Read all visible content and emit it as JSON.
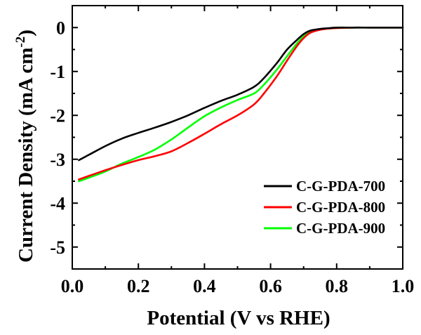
{
  "chart_data": {
    "type": "line",
    "xlabel": "Potential (V vs RHE)",
    "ylabel": "Current Density (mA cm",
    "ylabel_sup": "-2",
    "ylabel_close": ")",
    "xlim": [
      0.0,
      1.0
    ],
    "ylim": [
      -5.5,
      0.5
    ],
    "x_ticks": [
      0.0,
      0.2,
      0.4,
      0.6,
      0.8,
      1.0
    ],
    "x_tick_labels": [
      "0.0",
      "0.2",
      "0.4",
      "0.6",
      "0.8",
      "1.0"
    ],
    "y_ticks": [
      0,
      -1,
      -2,
      -3,
      -4,
      -5
    ],
    "y_tick_labels": [
      "0",
      "-1",
      "-2",
      "-3",
      "-4",
      "-5"
    ],
    "grid": false,
    "legend_position": "lower-right",
    "series": [
      {
        "name": "C-G-PDA-700",
        "color": "#000000",
        "x": [
          0.02,
          0.05,
          0.1,
          0.15,
          0.2,
          0.25,
          0.3,
          0.35,
          0.4,
          0.45,
          0.5,
          0.55,
          0.58,
          0.62,
          0.65,
          0.68,
          0.7,
          0.72,
          0.75,
          0.78,
          0.8,
          0.85,
          0.9,
          0.95,
          1.0
        ],
        "y": [
          -3.02,
          -2.9,
          -2.7,
          -2.53,
          -2.4,
          -2.28,
          -2.15,
          -2.0,
          -1.83,
          -1.67,
          -1.53,
          -1.35,
          -1.15,
          -0.8,
          -0.5,
          -0.28,
          -0.15,
          -0.07,
          -0.03,
          -0.01,
          0.0,
          0.0,
          0.0,
          0.0,
          0.0
        ]
      },
      {
        "name": "C-G-PDA-800",
        "color": "#ff0000",
        "x": [
          0.02,
          0.05,
          0.1,
          0.15,
          0.2,
          0.25,
          0.3,
          0.35,
          0.4,
          0.45,
          0.5,
          0.55,
          0.58,
          0.62,
          0.65,
          0.68,
          0.7,
          0.72,
          0.75,
          0.78,
          0.8,
          0.85,
          0.9,
          0.95,
          1.0
        ],
        "y": [
          -3.46,
          -3.38,
          -3.25,
          -3.13,
          -3.02,
          -2.93,
          -2.82,
          -2.63,
          -2.42,
          -2.2,
          -2.0,
          -1.75,
          -1.5,
          -1.1,
          -0.75,
          -0.42,
          -0.24,
          -0.12,
          -0.05,
          -0.02,
          -0.01,
          0.0,
          0.0,
          0.0,
          0.0
        ]
      },
      {
        "name": "C-G-PDA-900",
        "color": "#00ff00",
        "x": [
          0.02,
          0.05,
          0.1,
          0.15,
          0.2,
          0.25,
          0.3,
          0.35,
          0.4,
          0.45,
          0.5,
          0.55,
          0.58,
          0.62,
          0.65,
          0.68,
          0.7,
          0.72,
          0.75,
          0.78,
          0.8,
          0.85,
          0.9,
          0.95,
          1.0
        ],
        "y": [
          -3.5,
          -3.42,
          -3.28,
          -3.1,
          -2.95,
          -2.78,
          -2.55,
          -2.28,
          -2.02,
          -1.82,
          -1.65,
          -1.5,
          -1.3,
          -0.95,
          -0.65,
          -0.36,
          -0.2,
          -0.1,
          -0.04,
          -0.02,
          -0.01,
          0.0,
          0.0,
          0.0,
          0.0
        ]
      }
    ]
  }
}
